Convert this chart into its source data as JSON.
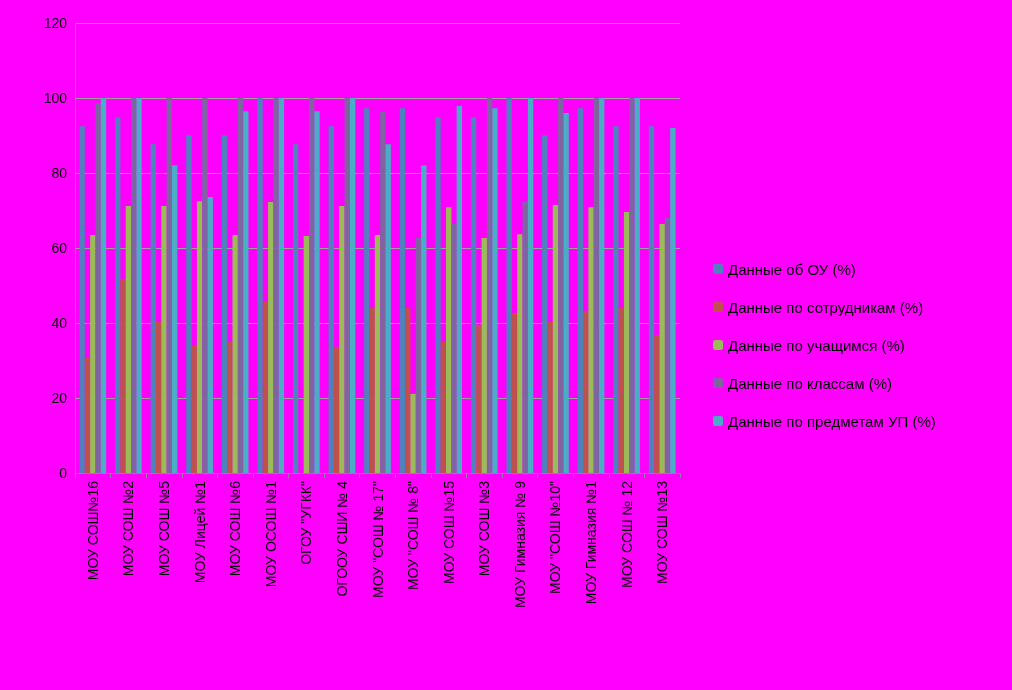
{
  "chart_data": {
    "type": "bar",
    "categories": [
      "МОУ СОШ№16",
      "МОУ СОШ №2",
      "МОУ СОШ №5",
      "МОУ Лицей №1",
      "МОУ СОШ №6",
      "МОУ ОСОШ №1",
      "ОГОУ \"УГКК\"",
      "ОГООУ СШИ № 4",
      "МОУ \"СОШ № 17\"",
      "МОУ \"СОШ № 8\"",
      "МОУ СОШ №15",
      "МОУ СОШ №3",
      "МОУ Гимназия № 9",
      "МОУ \"СОШ №10\"",
      "МОУ Гимназия №1",
      "МОУ СОШ № 12",
      "МОУ СОШ №13"
    ],
    "series": [
      {
        "name": "Данные об ОУ (%)",
        "color": "#4f81bd",
        "values": [
          92.5,
          94.9,
          87.7,
          90.1,
          90.1,
          100,
          87.7,
          92.5,
          97.3,
          97.3,
          94.9,
          94.9,
          100,
          90.1,
          97.3,
          92.5,
          92.5
        ]
      },
      {
        "name": "Данные по сотрудникам (%)",
        "color": "#c0504d",
        "values": [
          30.8,
          51.7,
          40.3,
          34,
          35,
          45.7,
          null,
          33.6,
          44,
          44,
          35,
          39.5,
          42.7,
          40.3,
          43.2,
          44,
          36.8
        ]
      },
      {
        "name": "Данные по учащимся (%)",
        "color": "#9bbb59",
        "values": [
          63.5,
          71.2,
          71.2,
          72.5,
          63.5,
          72.3,
          63.2,
          71.2,
          63.5,
          21.1,
          70.9,
          62.7,
          63.7,
          71.5,
          70.9,
          69.6,
          66.4
        ]
      },
      {
        "name": "Данные по классам (%)",
        "color": "#8064a2",
        "values": [
          98.6,
          100,
          100,
          100,
          100,
          100,
          100,
          100,
          96.3,
          62.7,
          66.4,
          100,
          72.3,
          100,
          100,
          100,
          68
        ]
      },
      {
        "name": "Данные по предметам УП (%)",
        "color": "#4bacc6",
        "values": [
          100,
          100,
          82.1,
          73.6,
          96.5,
          100,
          96.5,
          100,
          87.7,
          82.1,
          97.9,
          97.3,
          100,
          96,
          100,
          100,
          92
        ]
      }
    ],
    "ylim": [
      0,
      120
    ],
    "yticks": [
      0,
      20,
      40,
      60,
      80,
      100,
      120
    ],
    "grid": "y",
    "legend": "right"
  }
}
